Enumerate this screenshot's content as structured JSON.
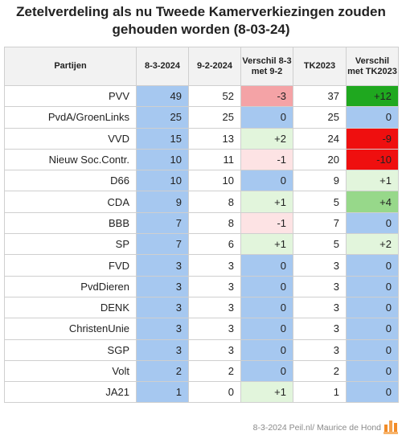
{
  "title_line1": "Zetelverdeling als nu Tweede Kamerverkiezingen zouden",
  "title_line2": "gehouden worden (8-03-24)",
  "headers": [
    "Partijen",
    "8-3-2024",
    "9-2-2024",
    "Verschil 8-3 met 9-2",
    "TK2023",
    "Verschil met TK2023"
  ],
  "rows": [
    {
      "party": "PVV",
      "v1": "49",
      "v2": "52",
      "d1": "-3",
      "tk": "37",
      "d2": "+12"
    },
    {
      "party": "PvdA/GroenLinks",
      "v1": "25",
      "v2": "25",
      "d1": "0",
      "tk": "25",
      "d2": "0"
    },
    {
      "party": "VVD",
      "v1": "15",
      "v2": "13",
      "d1": "+2",
      "tk": "24",
      "d2": "-9"
    },
    {
      "party": "Nieuw Soc.Contr.",
      "v1": "10",
      "v2": "11",
      "d1": "-1",
      "tk": "20",
      "d2": "-10"
    },
    {
      "party": "D66",
      "v1": "10",
      "v2": "10",
      "d1": "0",
      "tk": "9",
      "d2": "+1"
    },
    {
      "party": "CDA",
      "v1": "9",
      "v2": "8",
      "d1": "+1",
      "tk": "5",
      "d2": "+4"
    },
    {
      "party": "BBB",
      "v1": "7",
      "v2": "8",
      "d1": "-1",
      "tk": "7",
      "d2": "0"
    },
    {
      "party": "SP",
      "v1": "7",
      "v2": "6",
      "d1": "+1",
      "tk": "5",
      "d2": "+2"
    },
    {
      "party": "FVD",
      "v1": "3",
      "v2": "3",
      "d1": "0",
      "tk": "3",
      "d2": "0"
    },
    {
      "party": "PvdDieren",
      "v1": "3",
      "v2": "3",
      "d1": "0",
      "tk": "3",
      "d2": "0"
    },
    {
      "party": "DENK",
      "v1": "3",
      "v2": "3",
      "d1": "0",
      "tk": "3",
      "d2": "0"
    },
    {
      "party": "ChristenUnie",
      "v1": "3",
      "v2": "3",
      "d1": "0",
      "tk": "3",
      "d2": "0"
    },
    {
      "party": "SGP",
      "v1": "3",
      "v2": "3",
      "d1": "0",
      "tk": "3",
      "d2": "0"
    },
    {
      "party": "Volt",
      "v1": "2",
      "v2": "2",
      "d1": "0",
      "tk": "2",
      "d2": "0"
    },
    {
      "party": "JA21",
      "v1": "1",
      "v2": "0",
      "d1": "+1",
      "tk": "1",
      "d2": "0"
    }
  ],
  "colors": {
    "blue": "#a6c8f0",
    "white": "#ffffff",
    "lightred": "#f4a3a6",
    "palered": "#fde3e4",
    "lightgreen": "#e2f5dc",
    "midgreen": "#97d88a",
    "green": "#1fa81f",
    "red": "#ef0f0f"
  },
  "footer": "8-3-2024 Peil.nl/ Maurice de Hond",
  "logo_icon": "peil-bar-chart-logo"
}
